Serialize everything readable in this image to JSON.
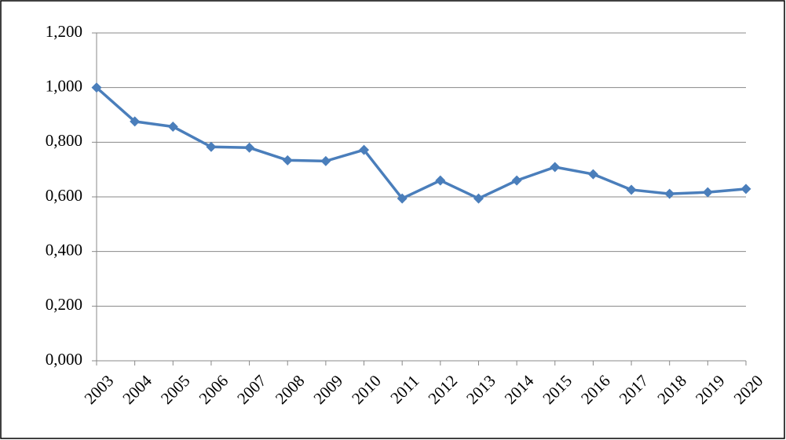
{
  "chart_data": {
    "type": "line",
    "categories": [
      "2003",
      "2004",
      "2005",
      "2006",
      "2007",
      "2008",
      "2009",
      "2010",
      "2011",
      "2012",
      "2013",
      "2014",
      "2015",
      "2016",
      "2017",
      "2018",
      "2019",
      "2020"
    ],
    "series": [
      {
        "name": null,
        "color": "#4a7ebb",
        "values": [
          1.0,
          0.876,
          0.857,
          0.783,
          0.78,
          0.734,
          0.731,
          0.772,
          0.594,
          0.66,
          0.594,
          0.66,
          0.709,
          0.683,
          0.626,
          0.611,
          0.617,
          0.629
        ]
      }
    ],
    "ylim": [
      0,
      1.2
    ],
    "yticks": [
      {
        "value": 0,
        "label": "0,000"
      },
      {
        "value": 0.2,
        "label": "0,200"
      },
      {
        "value": 0.4,
        "label": "0,400"
      },
      {
        "value": 0.6,
        "label": "0,600"
      },
      {
        "value": 0.8,
        "label": "0,800"
      },
      {
        "value": 1.0,
        "label": "1,000"
      },
      {
        "value": 1.2,
        "label": "1,200"
      }
    ],
    "grid": true
  }
}
